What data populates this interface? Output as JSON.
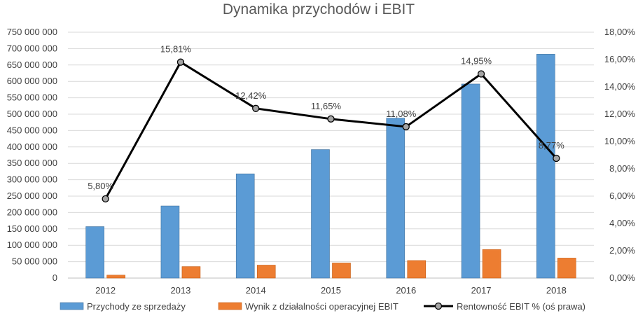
{
  "chart_data": {
    "type": "bar",
    "title": "Dynamika przychodów i EBIT",
    "categories": [
      "2012",
      "2013",
      "2014",
      "2015",
      "2016",
      "2017",
      "2018"
    ],
    "series": [
      {
        "name": "Przychody ze sprzedaży",
        "type": "bar",
        "axis": "left",
        "color": "#5B9BD5",
        "values": [
          157000000,
          220000000,
          318000000,
          392000000,
          488000000,
          592000000,
          683000000
        ]
      },
      {
        "name": "Wynik z działalności operacyjnej EBIT",
        "type": "bar",
        "axis": "left",
        "color": "#ED7D31",
        "values": [
          9000000,
          35000000,
          39500000,
          46000000,
          53500000,
          87000000,
          61000000
        ]
      },
      {
        "name": "Rentowność EBIT % (oś prawa)",
        "type": "line",
        "axis": "right",
        "color": "#000000",
        "marker_color": "#A5A5A5",
        "values": [
          5.8,
          15.81,
          12.42,
          11.65,
          11.08,
          14.95,
          8.77
        ],
        "labels": [
          "5,80%",
          "15,81%",
          "12,42%",
          "11,65%",
          "11,08%",
          "14,95%",
          "8,77%"
        ]
      }
    ],
    "y_left": {
      "min": 0,
      "max": 750000000,
      "ticks": [
        "0",
        "50 000 000",
        "100 000 000",
        "150 000 000",
        "200 000 000",
        "250 000 000",
        "300 000 000",
        "350 000 000",
        "400 000 000",
        "450 000 000",
        "500 000 000",
        "550 000 000",
        "600 000 000",
        "650 000 000",
        "700 000 000",
        "750 000 000"
      ]
    },
    "y_right": {
      "min": 0,
      "max": 18,
      "ticks": [
        "0,00%",
        "2,00%",
        "4,00%",
        "6,00%",
        "8,00%",
        "10,00%",
        "12,00%",
        "14,00%",
        "16,00%",
        "18,00%"
      ]
    },
    "grid": true,
    "legend_position": "bottom"
  }
}
